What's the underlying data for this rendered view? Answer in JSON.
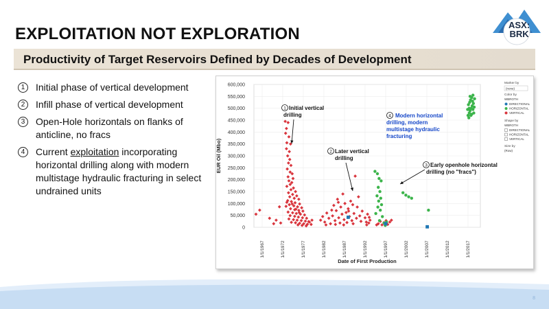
{
  "slide": {
    "title": "EXPLOITATION NOT EXPLORATION",
    "subtitle": "Productivity of Target Reservoirs Defined by Decades of Development",
    "logo_line1": "ASX:",
    "logo_line2": "BRK",
    "page_number": "8"
  },
  "bullets": [
    {
      "num": "1",
      "text": "Initial phase of vertical development"
    },
    {
      "num": "2",
      "text": "Infill phase of vertical development"
    },
    {
      "num": "3",
      "text": "Open-Hole horizontals on flanks of anticline, no fracs"
    },
    {
      "num": "4",
      "text_before": "Current ",
      "text_underlined": "exploitation",
      "text_after": " incorporating horizontal drilling along with modern multistage hydraulic fracturing in select undrained units"
    }
  ],
  "colors": {
    "vertical": "#d9363e",
    "horizontal": "#3cb44b",
    "directional": "#1f77b4",
    "annotation_blue": "#1446c8",
    "footer_blue": "#b9d4ef"
  },
  "chart_data": {
    "type": "scatter",
    "xlabel": "Date of First Production",
    "ylabel": "EUR Oil (Mbo)",
    "ylim": [
      0,
      600000
    ],
    "y_ticks": [
      0,
      50000,
      100000,
      150000,
      200000,
      250000,
      300000,
      350000,
      400000,
      450000,
      500000,
      550000,
      600000
    ],
    "y_tick_labels": [
      "0",
      "50,000",
      "100,000",
      "150,000",
      "200,000",
      "250,000",
      "300,000",
      "350,000",
      "400,000",
      "450,000",
      "500,000",
      "550,000",
      "600,000"
    ],
    "xlim": [
      1965.0,
      2020.0
    ],
    "x_ticks": [
      1967,
      1972,
      1977,
      1982,
      1987,
      1992,
      1997,
      2002,
      2007,
      2012,
      2017
    ],
    "x_tick_labels": [
      "1/1/1967",
      "1/1/1972",
      "1/1/1977",
      "1/1/1982",
      "1/1/1987",
      "1/1/1992",
      "1/1/1997",
      "1/1/2002",
      "1/1/2007",
      "1/1/2012",
      "1/1/2017"
    ],
    "grid": true,
    "legend": {
      "title": "Marker by",
      "select": "(none)",
      "color_by_label": "Color by",
      "color_by_value": "WBROTH",
      "shape_by_label": "Shape by",
      "shape_by_value": "WBROTH",
      "size_by_label": "Size by",
      "size_by_value": "(Row)",
      "items": [
        "DIRECTIONAL",
        "HORIZONTAL",
        "VERTICAL"
      ]
    },
    "annotations": [
      {
        "num": "1",
        "text": "Initial vertical drilling"
      },
      {
        "num": "2",
        "text": "Later vertical drilling"
      },
      {
        "num": "3",
        "text": "Early openhole horizontal drilling (no \"fracs\")"
      },
      {
        "num": "4",
        "text": "Modern horizontal drilling, modern multistage hydraulic fracturing"
      }
    ],
    "series": [
      {
        "name": "VERTICAL",
        "points": [
          [
            1965.5,
            55000
          ],
          [
            1966.4,
            72000
          ],
          [
            1968.8,
            38000
          ],
          [
            1969.8,
            15000
          ],
          [
            1970.4,
            30000
          ],
          [
            1971.2,
            86000
          ],
          [
            1971.5,
            18000
          ],
          [
            1972.6,
            445000
          ],
          [
            1972.9,
            415000
          ],
          [
            1973.3,
            440000
          ],
          [
            1972.7,
            395000
          ],
          [
            1973.5,
            380000
          ],
          [
            1973.0,
            355000
          ],
          [
            1973.9,
            350000
          ],
          [
            1972.9,
            330000
          ],
          [
            1973.6,
            318000
          ],
          [
            1973.2,
            300000
          ],
          [
            1973.7,
            285000
          ],
          [
            1973.4,
            270000
          ],
          [
            1974.0,
            260000
          ],
          [
            1973.1,
            245000
          ],
          [
            1973.8,
            232000
          ],
          [
            1974.3,
            225000
          ],
          [
            1973.3,
            212000
          ],
          [
            1974.5,
            205000
          ],
          [
            1973.5,
            195000
          ],
          [
            1974.2,
            188000
          ],
          [
            1973.8,
            180000
          ],
          [
            1973.0,
            172000
          ],
          [
            1974.6,
            165000
          ],
          [
            1974.0,
            158000
          ],
          [
            1975.1,
            150000
          ],
          [
            1973.4,
            145000
          ],
          [
            1974.4,
            138000
          ],
          [
            1975.4,
            132000
          ],
          [
            1973.7,
            128000
          ],
          [
            1974.8,
            122000
          ],
          [
            1975.9,
            118000
          ],
          [
            1973.2,
            112000
          ],
          [
            1974.1,
            108000
          ],
          [
            1975.0,
            103000
          ],
          [
            1976.1,
            98000
          ],
          [
            1973.6,
            95000
          ],
          [
            1974.7,
            90000
          ],
          [
            1975.6,
            86000
          ],
          [
            1976.6,
            82000
          ],
          [
            1973.9,
            78000
          ],
          [
            1974.9,
            74000
          ],
          [
            1975.9,
            71000
          ],
          [
            1976.9,
            68000
          ],
          [
            1973.3,
            64000
          ],
          [
            1974.4,
            61000
          ],
          [
            1975.3,
            58000
          ],
          [
            1976.3,
            55000
          ],
          [
            1977.3,
            52000
          ],
          [
            1973.8,
            49000
          ],
          [
            1974.9,
            46000
          ],
          [
            1975.8,
            43000
          ],
          [
            1976.8,
            40000
          ],
          [
            1977.8,
            38000
          ],
          [
            1973.5,
            35000
          ],
          [
            1974.6,
            32000
          ],
          [
            1975.5,
            30000
          ],
          [
            1976.5,
            28000
          ],
          [
            1977.5,
            26000
          ],
          [
            1978.3,
            24000
          ],
          [
            1974.1,
            21000
          ],
          [
            1975.1,
            19000
          ],
          [
            1976.1,
            17000
          ],
          [
            1977.1,
            15000
          ],
          [
            1978.0,
            13000
          ],
          [
            1975.7,
            10000
          ],
          [
            1976.7,
            8000
          ],
          [
            1977.7,
            6000
          ],
          [
            1978.5,
            22000
          ],
          [
            1979.1,
            30000
          ],
          [
            1978.9,
            12000
          ],
          [
            1973.0,
            105000
          ],
          [
            1974.3,
            98000
          ],
          [
            1972.8,
            88000
          ],
          [
            1975.2,
            76000
          ],
          [
            1976.0,
            62000
          ],
          [
            1981.2,
            30000
          ],
          [
            1981.7,
            45000
          ],
          [
            1982.2,
            22000
          ],
          [
            1982.7,
            60000
          ],
          [
            1983.2,
            38000
          ],
          [
            1983.6,
            15000
          ],
          [
            1984.1,
            48000
          ],
          [
            1984.4,
            92000
          ],
          [
            1984.7,
            28000
          ],
          [
            1985.0,
            70000
          ],
          [
            1985.3,
            118000
          ],
          [
            1985.6,
            40000
          ],
          [
            1985.9,
            18000
          ],
          [
            1986.1,
            85000
          ],
          [
            1986.4,
            55000
          ],
          [
            1986.6,
            140000
          ],
          [
            1986.9,
            32000
          ],
          [
            1987.1,
            100000
          ],
          [
            1987.4,
            62000
          ],
          [
            1987.6,
            20000
          ],
          [
            1987.9,
            78000
          ],
          [
            1988.2,
            45000
          ],
          [
            1988.5,
            110000
          ],
          [
            1988.8,
            28000
          ],
          [
            1989.0,
            95000
          ],
          [
            1989.3,
            58000
          ],
          [
            1989.6,
            215000
          ],
          [
            1989.9,
            38000
          ],
          [
            1990.1,
            85000
          ],
          [
            1990.4,
            128000
          ],
          [
            1990.7,
            48000
          ],
          [
            1991.0,
            25000
          ],
          [
            1991.3,
            68000
          ],
          [
            1982.5,
            10000
          ],
          [
            1983.9,
            72000
          ],
          [
            1985.5,
            105000
          ],
          [
            1984.8,
            12000
          ],
          [
            1986.8,
            10000
          ],
          [
            1988.0,
            68000
          ],
          [
            1989.1,
            15000
          ],
          [
            1992.0,
            40000
          ],
          [
            1992.3,
            22000
          ],
          [
            1992.6,
            55000
          ],
          [
            1992.9,
            18000
          ],
          [
            1993.2,
            30000
          ],
          [
            1992.4,
            10000
          ],
          [
            1993.0,
            42000
          ],
          [
            1995.2,
            15000
          ],
          [
            1995.7,
            25000
          ],
          [
            1996.1,
            10000
          ],
          [
            1996.6,
            20000
          ],
          [
            1997.1,
            28000
          ],
          [
            1997.5,
            12000
          ],
          [
            1998.0,
            22000
          ],
          [
            1998.4,
            30000
          ],
          [
            1996.9,
            8000
          ],
          [
            1994.8,
            10000
          ]
        ]
      },
      {
        "name": "HORIZONTAL",
        "points": [
          [
            1994.4,
            235000
          ],
          [
            1995.0,
            225000
          ],
          [
            1995.4,
            205000
          ],
          [
            1995.9,
            195000
          ],
          [
            1995.2,
            168000
          ],
          [
            1995.6,
            150000
          ],
          [
            1994.9,
            132000
          ],
          [
            1995.8,
            122000
          ],
          [
            1995.3,
            110000
          ],
          [
            1996.0,
            95000
          ],
          [
            1995.1,
            85000
          ],
          [
            1995.7,
            72000
          ],
          [
            1994.6,
            58000
          ],
          [
            1996.2,
            45000
          ],
          [
            1995.5,
            28000
          ],
          [
            1996.6,
            18000
          ],
          [
            1996.9,
            8000
          ],
          [
            1997.2,
            22000
          ],
          [
            2001.2,
            145000
          ],
          [
            2001.9,
            135000
          ],
          [
            2002.6,
            128000
          ],
          [
            2003.3,
            122000
          ],
          [
            2007.4,
            72000
          ],
          [
            2017.0,
            470000
          ],
          [
            2017.3,
            480000
          ],
          [
            2017.5,
            490000
          ],
          [
            2017.8,
            500000
          ],
          [
            2018.0,
            510000
          ],
          [
            2018.2,
            495000
          ],
          [
            2018.4,
            480000
          ],
          [
            2017.1,
            515000
          ],
          [
            2017.4,
            525000
          ],
          [
            2017.6,
            535000
          ],
          [
            2017.9,
            545000
          ],
          [
            2018.1,
            530000
          ],
          [
            2018.3,
            520000
          ],
          [
            2017.2,
            460000
          ],
          [
            2017.7,
            470000
          ],
          [
            2018.5,
            505000
          ],
          [
            2016.9,
            495000
          ],
          [
            2018.6,
            540000
          ],
          [
            2017.5,
            550000
          ],
          [
            2018.2,
            555000
          ],
          [
            2017.9,
            475000
          ],
          [
            2017.3,
            500000
          ]
        ]
      },
      {
        "name": "DIRECTIONAL",
        "points": [
          [
            1987.9,
            42000
          ],
          [
            1997.0,
            15000
          ],
          [
            2007.1,
            2000
          ]
        ]
      }
    ]
  }
}
